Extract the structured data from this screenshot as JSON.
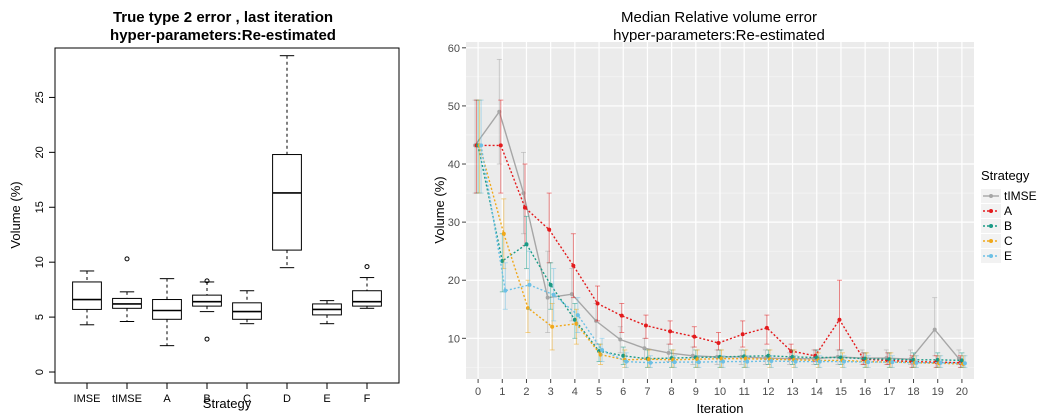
{
  "chart_data": [
    {
      "type": "box",
      "title_lines": [
        "True type 2 error , last iteration",
        "hyper-parameters:Re-estimated"
      ],
      "xlabel": "Strategy",
      "ylabel": "Volume (%)",
      "ylim": [
        -1,
        29.5
      ],
      "yticks": [
        0,
        5,
        10,
        15,
        20,
        25
      ],
      "grid": false,
      "categories": [
        "IMSE",
        "tIMSE",
        "A",
        "B",
        "C",
        "D",
        "E",
        "F"
      ],
      "boxes": [
        {
          "min": 4.3,
          "q1": 5.7,
          "median": 6.6,
          "q3": 8.2,
          "max": 9.2,
          "outliers": []
        },
        {
          "min": 4.6,
          "q1": 5.8,
          "median": 6.2,
          "q3": 6.7,
          "max": 7.3,
          "outliers": [
            10.3
          ]
        },
        {
          "min": 2.4,
          "q1": 4.8,
          "median": 5.6,
          "q3": 6.6,
          "max": 8.5,
          "outliers": []
        },
        {
          "min": 5.5,
          "q1": 6.0,
          "median": 6.4,
          "q3": 7.0,
          "max": 8.2,
          "outliers": [
            8.3,
            3.0
          ]
        },
        {
          "min": 4.4,
          "q1": 4.8,
          "median": 5.5,
          "q3": 6.3,
          "max": 7.4,
          "outliers": []
        },
        {
          "min": 9.5,
          "q1": 11.1,
          "median": 16.3,
          "q3": 19.8,
          "max": 28.8,
          "outliers": []
        },
        {
          "min": 4.4,
          "q1": 5.2,
          "median": 5.7,
          "q3": 6.2,
          "max": 6.5,
          "outliers": []
        },
        {
          "min": 5.8,
          "q1": 6.0,
          "median": 6.4,
          "q3": 7.4,
          "max": 8.6,
          "outliers": [
            9.6
          ]
        }
      ]
    },
    {
      "type": "line",
      "title_lines": [
        "Median Relative volume error",
        "hyper-parameters:Re-estimated"
      ],
      "xlabel": "Iteration",
      "ylabel": "Volume (%)",
      "xlim": [
        -0.5,
        20.5
      ],
      "ylim": [
        3,
        61
      ],
      "yticks": [
        10,
        20,
        30,
        40,
        50,
        60
      ],
      "grid": true,
      "x": [
        0,
        1,
        2,
        3,
        4,
        5,
        6,
        7,
        8,
        9,
        10,
        11,
        12,
        13,
        14,
        15,
        16,
        17,
        18,
        19,
        20
      ],
      "legend": {
        "title": "Strategy",
        "placement": "right"
      },
      "series": [
        {
          "name": "tIMSE",
          "color": "#a6a6a6",
          "dashed": false,
          "values": [
            43.2,
            49.0,
            35.0,
            17.0,
            17.6,
            13.0,
            9.8,
            8.3,
            7.5,
            7.0,
            6.8,
            6.8,
            6.6,
            6.5,
            6.5,
            6.8,
            6.6,
            6.6,
            6.4,
            11.5,
            6.5
          ],
          "err_lo": [
            35.0,
            40.0,
            28.0,
            11.0,
            13.0,
            9.0,
            7.5,
            6.5,
            6.0,
            5.5,
            5.5,
            5.5,
            5.5,
            5.5,
            5.5,
            5.5,
            5.5,
            5.5,
            5.5,
            7.0,
            5.5
          ],
          "err_hi": [
            51.0,
            58.0,
            42.0,
            25.0,
            22.0,
            16.0,
            12.0,
            10.0,
            9.0,
            8.5,
            8.0,
            8.0,
            8.0,
            7.5,
            8.0,
            8.0,
            8.0,
            8.0,
            8.0,
            17.0,
            8.0
          ]
        },
        {
          "name": "A",
          "color": "#e31a1c",
          "dashed": true,
          "values": [
            43.2,
            43.2,
            32.5,
            28.7,
            22.5,
            16.0,
            13.9,
            12.2,
            11.2,
            10.3,
            9.2,
            10.7,
            11.8,
            7.8,
            7.0,
            13.2,
            6.4,
            6.2,
            6.0,
            5.9,
            5.8
          ],
          "err_lo": [
            35.0,
            35.0,
            26.0,
            23.0,
            17.0,
            13.0,
            11.0,
            10.0,
            9.0,
            8.5,
            8.0,
            8.5,
            9.0,
            6.5,
            6.0,
            8.0,
            5.5,
            5.5,
            5.0,
            5.0,
            5.0
          ],
          "err_hi": [
            51.0,
            51.0,
            40.0,
            35.0,
            28.0,
            19.0,
            16.0,
            14.0,
            13.0,
            12.0,
            11.0,
            13.0,
            14.0,
            9.0,
            8.0,
            20.0,
            7.5,
            7.5,
            7.0,
            7.0,
            7.0
          ]
        },
        {
          "name": "B",
          "color": "#1a9a86",
          "dashed": true,
          "values": [
            43.2,
            23.3,
            26.2,
            19.2,
            13.2,
            7.8,
            7.0,
            6.5,
            6.6,
            6.7,
            6.8,
            6.9,
            7.0,
            6.8,
            6.7,
            6.7,
            6.5,
            6.4,
            6.3,
            6.3,
            6.2
          ],
          "err_lo": [
            35.0,
            18.0,
            22.0,
            15.0,
            10.0,
            6.0,
            5.5,
            5.0,
            5.0,
            5.0,
            5.0,
            5.0,
            5.5,
            5.5,
            5.5,
            5.5,
            5.0,
            5.0,
            5.0,
            5.0,
            5.0
          ],
          "err_hi": [
            51.0,
            28.0,
            31.0,
            23.0,
            16.0,
            9.0,
            8.5,
            8.0,
            8.0,
            8.0,
            8.0,
            8.0,
            8.0,
            8.0,
            8.0,
            8.0,
            7.5,
            7.5,
            7.5,
            7.5,
            7.5
          ]
        },
        {
          "name": "C",
          "color": "#f0a81a",
          "dashed": true,
          "values": [
            43.2,
            28.0,
            15.2,
            12.0,
            12.5,
            7.2,
            6.3,
            6.4,
            6.3,
            6.4,
            6.5,
            6.5,
            6.4,
            6.3,
            6.2,
            6.2,
            6.0,
            5.9,
            5.8,
            5.7,
            5.6
          ],
          "err_lo": [
            35.0,
            22.0,
            11.0,
            8.0,
            9.0,
            5.5,
            5.0,
            5.0,
            5.0,
            5.0,
            5.0,
            5.0,
            5.0,
            5.0,
            5.0,
            5.0,
            5.0,
            5.0,
            5.0,
            5.0,
            5.0
          ],
          "err_hi": [
            51.0,
            34.0,
            20.0,
            16.0,
            15.0,
            9.0,
            8.0,
            8.0,
            8.0,
            8.0,
            8.0,
            8.0,
            8.0,
            8.0,
            7.5,
            7.5,
            7.5,
            7.5,
            7.0,
            7.0,
            7.0
          ]
        },
        {
          "name": "E",
          "color": "#6cc0e5",
          "dashed": true,
          "values": [
            43.2,
            18.2,
            19.2,
            17.5,
            14.0,
            8.0,
            6.0,
            5.8,
            5.9,
            5.9,
            6.0,
            6.0,
            6.1,
            6.0,
            6.0,
            6.0,
            5.9,
            5.9,
            5.8,
            5.8,
            5.7
          ],
          "err_lo": [
            35.0,
            15.0,
            15.0,
            13.0,
            11.0,
            6.0,
            5.0,
            5.0,
            5.0,
            5.0,
            5.0,
            5.0,
            5.0,
            5.0,
            5.0,
            5.0,
            5.0,
            5.0,
            5.0,
            5.0,
            5.0
          ],
          "err_hi": [
            51.0,
            23.0,
            25.0,
            22.0,
            17.0,
            10.0,
            7.5,
            7.0,
            7.0,
            7.0,
            7.0,
            7.0,
            7.0,
            7.0,
            7.0,
            7.0,
            7.0,
            7.0,
            7.0,
            7.0,
            7.0
          ]
        }
      ]
    }
  ]
}
